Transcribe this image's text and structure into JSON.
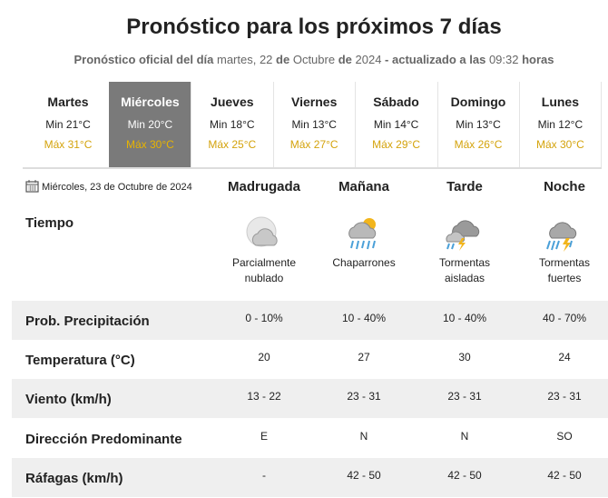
{
  "header": {
    "title": "Pronóstico para los próximos 7 días",
    "subtitle": [
      {
        "text": "Pronóstico oficial del día",
        "bold": true
      },
      {
        "text": "martes, 22",
        "bold": false
      },
      {
        "text": "de",
        "bold": true
      },
      {
        "text": "Octubre",
        "bold": false
      },
      {
        "text": "de",
        "bold": true
      },
      {
        "text": "2024",
        "bold": false
      },
      {
        "text": "- actualizado a las",
        "bold": true
      },
      {
        "text": "09:32",
        "bold": false
      },
      {
        "text": "horas",
        "bold": true
      }
    ]
  },
  "days": [
    {
      "name": "Martes",
      "min": "Min 21°C",
      "max": "Máx 31°C"
    },
    {
      "name": "Miércoles",
      "min": "Min 20°C",
      "max": "Máx 30°C"
    },
    {
      "name": "Jueves",
      "min": "Min 18°C",
      "max": "Máx 25°C"
    },
    {
      "name": "Viernes",
      "min": "Min 13°C",
      "max": "Máx 27°C"
    },
    {
      "name": "Sábado",
      "min": "Min 14°C",
      "max": "Máx 29°C"
    },
    {
      "name": "Domingo",
      "min": "Min 13°C",
      "max": "Máx 26°C"
    },
    {
      "name": "Lunes",
      "min": "Min 12°C",
      "max": "Máx 30°C"
    }
  ],
  "selected_day": 1,
  "detail": {
    "date": "Miércoles, 23 de Octubre de 2024",
    "periods": [
      "Madrugada",
      "Mañana",
      "Tarde",
      "Noche"
    ],
    "weather_label": "Tiempo",
    "weather": [
      "Parcialmente nublado",
      "Chaparrones",
      "Tormentas aisladas",
      "Tormentas fuertes"
    ],
    "rows": [
      {
        "label": "Prob. Precipitación",
        "values": [
          "0 - 10%",
          "10 - 40%",
          "10 - 40%",
          "40 - 70%"
        ]
      },
      {
        "label": "Temperatura (°C)",
        "values": [
          "20",
          "27",
          "30",
          "24"
        ]
      },
      {
        "label": "Viento (km/h)",
        "values": [
          "13 - 22",
          "23 - 31",
          "23 - 31",
          "23 - 31"
        ]
      },
      {
        "label": "Dirección Predominante",
        "values": [
          "E",
          "N",
          "N",
          "SO"
        ]
      },
      {
        "label": "Ráfagas (km/h)",
        "values": [
          "-",
          "42 - 50",
          "42 - 50",
          "42 - 50"
        ]
      }
    ]
  }
}
